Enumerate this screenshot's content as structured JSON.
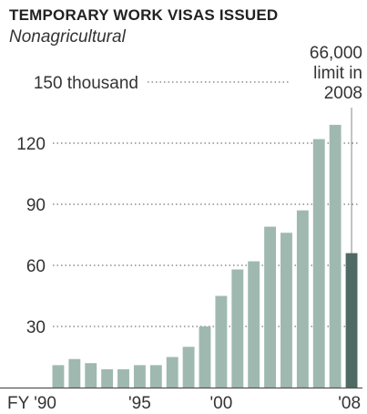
{
  "chart_data": {
    "type": "bar",
    "title": "TEMPORARY WORK VISAS ISSUED",
    "subtitle": "Nonagricultural",
    "xlabel": "",
    "ylabel": "",
    "ylim": [
      0,
      150
    ],
    "grid": true,
    "y_ticks": [
      {
        "value": 150,
        "label": "150 thousand"
      },
      {
        "value": 120,
        "label": "120"
      },
      {
        "value": 90,
        "label": "90"
      },
      {
        "value": 60,
        "label": "60"
      },
      {
        "value": 30,
        "label": "30"
      }
    ],
    "x_tick_labels": [
      {
        "category": "1990",
        "label": "FY '90"
      },
      {
        "category": "1995",
        "label": "'95"
      },
      {
        "category": "2000",
        "label": "'00"
      },
      {
        "category": "2008",
        "label": "'08"
      }
    ],
    "categories": [
      "1990",
      "1991",
      "1992",
      "1993",
      "1994",
      "1995",
      "1996",
      "1997",
      "1998",
      "1999",
      "2000",
      "2001",
      "2002",
      "2003",
      "2004",
      "2005",
      "2006",
      "2007",
      "2008"
    ],
    "values": [
      11,
      14,
      12,
      9,
      9,
      11,
      11,
      15,
      20,
      30,
      45,
      58,
      62,
      79,
      76,
      87,
      122,
      129,
      66
    ],
    "highlight": {
      "category": "2008",
      "color": "#4f6a63"
    },
    "bar_color": "#9fb9b0",
    "annotation": {
      "lines": [
        "66,000",
        "limit in",
        "2008"
      ]
    }
  }
}
